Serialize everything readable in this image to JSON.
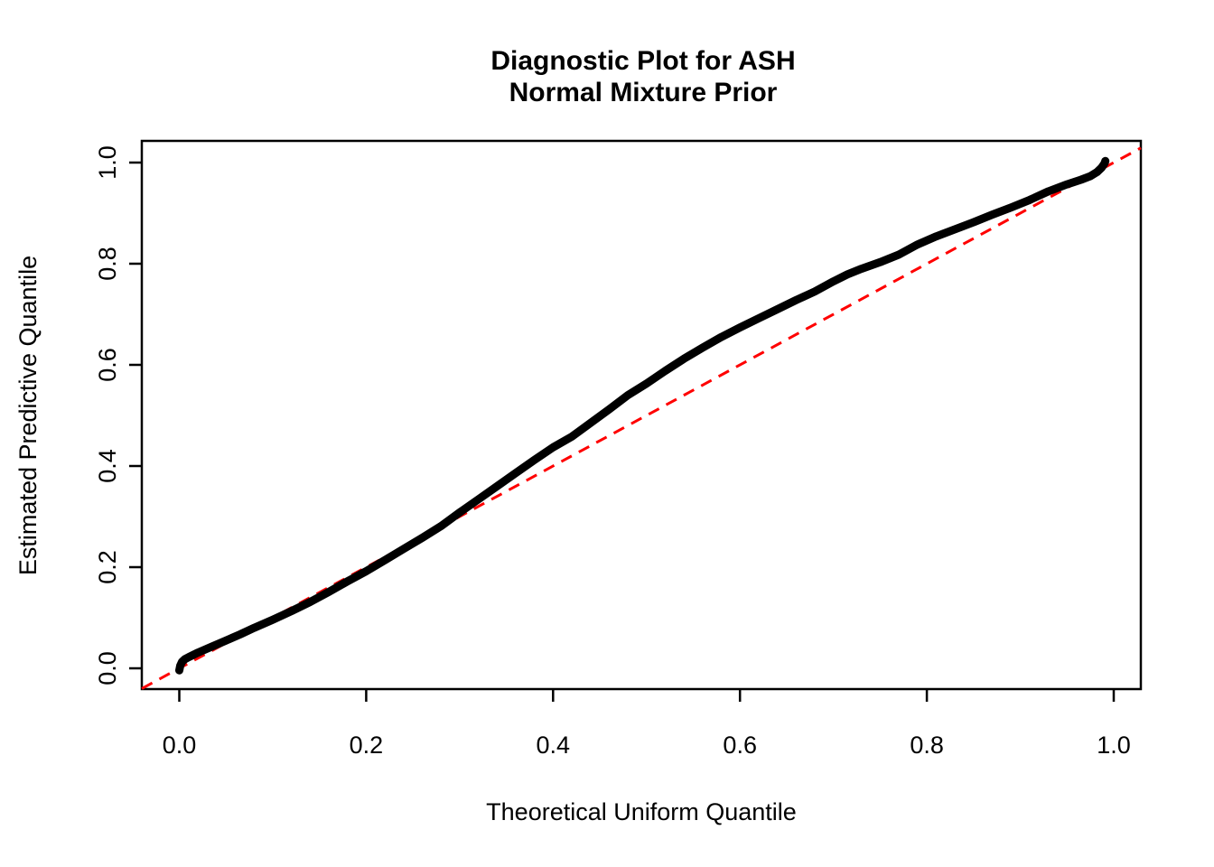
{
  "title": {
    "line1": "Diagnostic Plot for ASH",
    "line2": "Normal Mixture Prior"
  },
  "colors": {
    "curve": "#000000",
    "reference_line": "#FF0000",
    "axis": "#000000",
    "background": "#FFFFFF"
  },
  "chart_data": {
    "type": "line",
    "title": "Diagnostic Plot for ASH — Normal Mixture Prior",
    "xlabel": "Theoretical Uniform Quantile",
    "ylabel": "Estimated Predictive Quantile",
    "xlim": [
      -0.04,
      1.03
    ],
    "ylim": [
      -0.041,
      1.043
    ],
    "grid": false,
    "legend": "none",
    "x_ticks": {
      "values": [
        0.0,
        0.2,
        0.4,
        0.6,
        0.8,
        1.0
      ],
      "labels": [
        "0.0",
        "0.2",
        "0.4",
        "0.6",
        "0.8",
        "1.0"
      ]
    },
    "y_ticks": {
      "values": [
        0.0,
        0.2,
        0.4,
        0.6,
        0.8,
        1.0
      ],
      "labels": [
        "0.0",
        "0.2",
        "0.4",
        "0.6",
        "0.8",
        "1.0"
      ]
    },
    "series": [
      {
        "name": "estimated-predictive-quantile-curve",
        "style": "thick-solid",
        "color": "#000000",
        "points": [
          [
            0.0,
            -0.004
          ],
          [
            0.001,
            0.005
          ],
          [
            0.003,
            0.013
          ],
          [
            0.006,
            0.018
          ],
          [
            0.01,
            0.022
          ],
          [
            0.02,
            0.031
          ],
          [
            0.035,
            0.043
          ],
          [
            0.05,
            0.055
          ],
          [
            0.065,
            0.067
          ],
          [
            0.08,
            0.08
          ],
          [
            0.1,
            0.096
          ],
          [
            0.12,
            0.113
          ],
          [
            0.14,
            0.131
          ],
          [
            0.16,
            0.151
          ],
          [
            0.18,
            0.172
          ],
          [
            0.2,
            0.192
          ],
          [
            0.22,
            0.214
          ],
          [
            0.24,
            0.236
          ],
          [
            0.26,
            0.258
          ],
          [
            0.28,
            0.281
          ],
          [
            0.3,
            0.308
          ],
          [
            0.32,
            0.334
          ],
          [
            0.34,
            0.36
          ],
          [
            0.36,
            0.386
          ],
          [
            0.38,
            0.412
          ],
          [
            0.4,
            0.437
          ],
          [
            0.42,
            0.458
          ],
          [
            0.44,
            0.485
          ],
          [
            0.46,
            0.512
          ],
          [
            0.48,
            0.54
          ],
          [
            0.5,
            0.563
          ],
          [
            0.52,
            0.588
          ],
          [
            0.54,
            0.612
          ],
          [
            0.56,
            0.634
          ],
          [
            0.58,
            0.655
          ],
          [
            0.6,
            0.674
          ],
          [
            0.62,
            0.692
          ],
          [
            0.64,
            0.71
          ],
          [
            0.66,
            0.728
          ],
          [
            0.68,
            0.745
          ],
          [
            0.7,
            0.765
          ],
          [
            0.715,
            0.779
          ],
          [
            0.73,
            0.79
          ],
          [
            0.75,
            0.803
          ],
          [
            0.77,
            0.818
          ],
          [
            0.79,
            0.838
          ],
          [
            0.81,
            0.854
          ],
          [
            0.83,
            0.868
          ],
          [
            0.85,
            0.882
          ],
          [
            0.87,
            0.897
          ],
          [
            0.89,
            0.911
          ],
          [
            0.91,
            0.926
          ],
          [
            0.93,
            0.943
          ],
          [
            0.95,
            0.957
          ],
          [
            0.965,
            0.966
          ],
          [
            0.975,
            0.973
          ],
          [
            0.982,
            0.981
          ],
          [
            0.987,
            0.99
          ],
          [
            0.99,
            0.998
          ],
          [
            0.991,
            1.003
          ]
        ]
      },
      {
        "name": "reference-line-y-equals-x",
        "style": "dashed",
        "color": "#FF0000",
        "points": [
          [
            -0.04,
            -0.04
          ],
          [
            1.029,
            1.029
          ]
        ]
      }
    ]
  }
}
